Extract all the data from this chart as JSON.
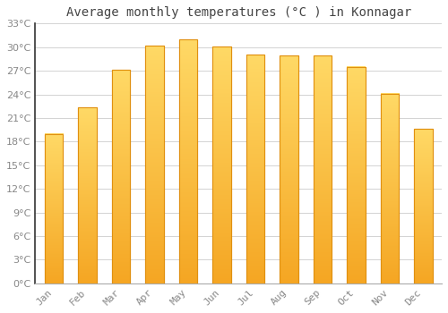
{
  "title": "Average monthly temperatures (°C ) in Konnagar",
  "months": [
    "Jan",
    "Feb",
    "Mar",
    "Apr",
    "May",
    "Jun",
    "Jul",
    "Aug",
    "Sep",
    "Oct",
    "Nov",
    "Dec"
  ],
  "values": [
    19.0,
    22.3,
    27.1,
    30.2,
    31.0,
    30.1,
    29.0,
    28.9,
    28.9,
    27.5,
    24.1,
    19.6
  ],
  "bar_color_top": "#FFD966",
  "bar_color_bottom": "#F5A623",
  "bar_edge_color": "#E09010",
  "background_color": "#FFFFFF",
  "grid_color": "#CCCCCC",
  "tick_label_color": "#888888",
  "title_color": "#444444",
  "ylim": [
    0,
    33
  ],
  "ytick_step": 3,
  "title_fontsize": 10,
  "tick_fontsize": 8,
  "bar_width": 0.55
}
